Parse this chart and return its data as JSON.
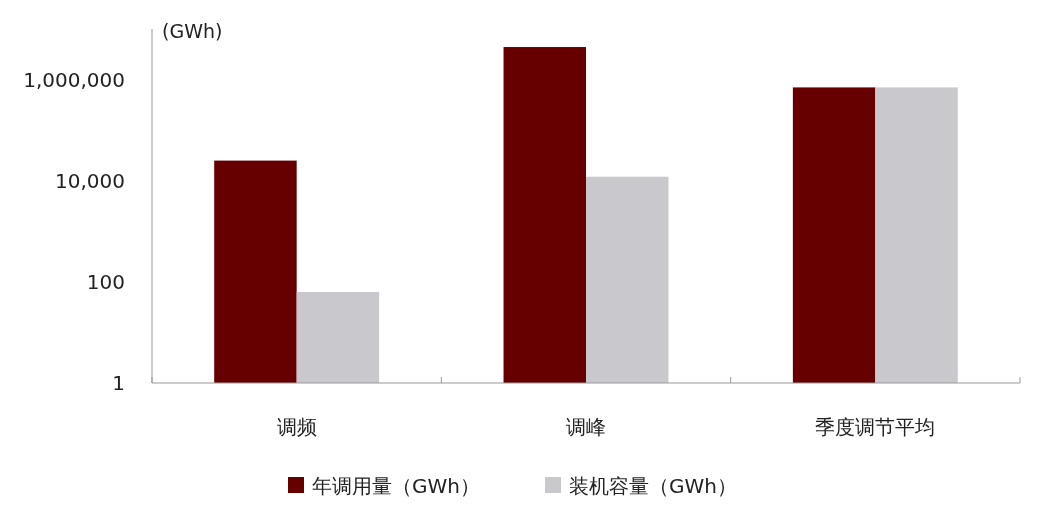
{
  "chart_data": {
    "type": "bar",
    "ylabel": "(GWh)",
    "log": true,
    "legend": "bottom",
    "categories": [
      "调频",
      "调峰",
      "季度调节平均"
    ],
    "ylim": [
      1,
      10000000
    ],
    "yticks": [
      {
        "value": 1,
        "label": "1"
      },
      {
        "value": 100,
        "label": "100"
      },
      {
        "value": 10000,
        "label": "10,000"
      },
      {
        "value": 1000000,
        "label": "1,000,000"
      }
    ],
    "series": [
      {
        "name": "年调用量（GWh）",
        "color": "#660000",
        "values": [
          25000,
          4400000,
          700000
        ]
      },
      {
        "name": "装机容量（GWh）",
        "color": "#c9c8cc",
        "values": [
          63,
          12000,
          700000
        ]
      }
    ]
  }
}
